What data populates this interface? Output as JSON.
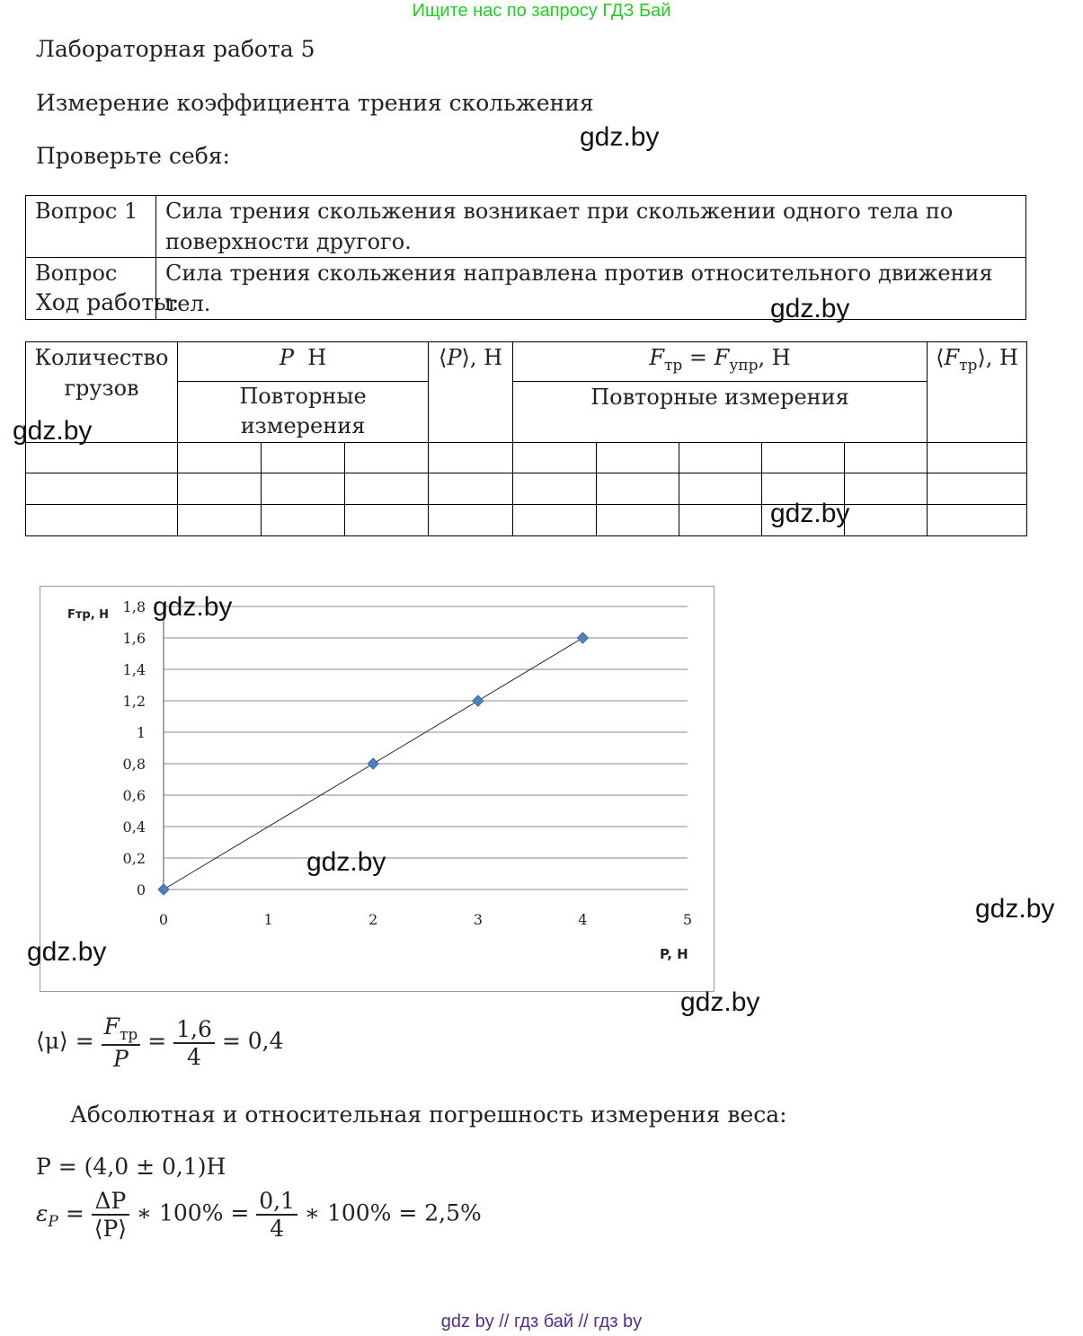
{
  "banner": "Ищите нас по запросу ГДЗ Бай",
  "title": "Лабораторная работа 5",
  "subtitle": "Измерение коэффициента трения скольжения",
  "check_label": "Проверьте себя:",
  "questions": [
    {
      "label": "Вопрос 1",
      "answer": "Сила трения скольжения возникает при скольжении одного тела по поверхности другого."
    },
    {
      "label": "Вопрос",
      "answer": "Сила трения скольжения направлена против относительного движения тел."
    }
  ],
  "progress_label": "Ход работы:",
  "table": {
    "h_count": "Количество грузов",
    "h_P": "P  Н",
    "h_P_rep": "Повторные измерения",
    "h_Pavg": "⟨P⟩, Н",
    "h_F": "Fтр = Fупр, Н",
    "h_F_rep": "Повторные измерения",
    "h_Favg": "⟨Fтр⟩, Н"
  },
  "chart_data": {
    "type": "line",
    "xlabel": "P, Н",
    "ylabel": "Fтр, Н",
    "xlim": [
      0,
      5
    ],
    "ylim": [
      0,
      1.8
    ],
    "x_ticks": [
      "0",
      "1",
      "2",
      "3",
      "4",
      "5"
    ],
    "y_ticks": [
      "0",
      "0,2",
      "0,4",
      "0,6",
      "0,8",
      "1",
      "1,2",
      "1,4",
      "1,6",
      "1,8"
    ],
    "grid": true,
    "points": [
      {
        "x": 0,
        "y": 0
      },
      {
        "x": 2,
        "y": 0.8
      },
      {
        "x": 3,
        "y": 1.2
      },
      {
        "x": 4,
        "y": 1.6
      }
    ],
    "marker_color": "#4f81bd"
  },
  "formula_mu": {
    "lhs": "⟨μ⟩ =",
    "num1": "Fтр",
    "den1": "P",
    "num2": "1,6",
    "den2": "4",
    "result": "= 0,4"
  },
  "error_text": "Абсолютная и относительная погрешность измерения веса:",
  "formula_P": "P = (4,0 ± 0,1)Н",
  "formula_eps": {
    "lhs": "εP =",
    "num1": "ΔP",
    "den1": "⟨P⟩",
    "mid": "∗ 100% =",
    "num2": "0,1",
    "den2": "4",
    "result": "∗ 100% = 2,5%"
  },
  "watermark": "gdz.by",
  "footer": "gdz by  //  гдз бай  //  гдз by"
}
